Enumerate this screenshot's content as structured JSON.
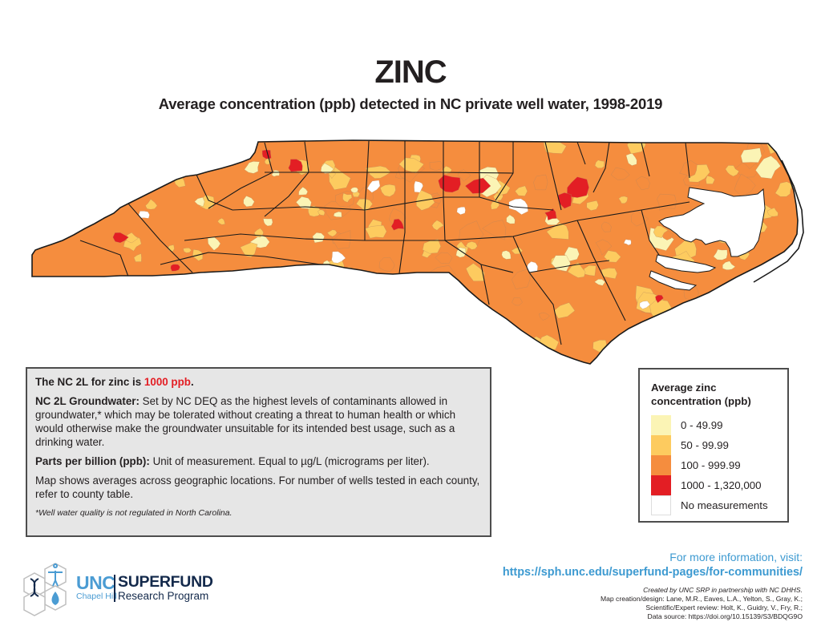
{
  "header": {
    "title": "ZINC",
    "subtitle": "Average concentration (ppb) detected in NC private well water, 1998-2019"
  },
  "map": {
    "region": "North Carolina",
    "metric": "Average zinc concentration (ppb) by geographic area",
    "category_colors": {
      "low": "#fbf4b5",
      "mid_low": "#fdcb5f",
      "mid_high": "#f58d3e",
      "high": "#e31e24",
      "none": "#ffffff"
    },
    "border_color": "#1a1a1a"
  },
  "info_box": {
    "standard_prefix": "The NC 2L for zinc is ",
    "standard_value": "1000 ppb",
    "standard_suffix": ".",
    "groundwater_label": "NC 2L Groundwater:",
    "groundwater_text": " Set by NC DEQ as the highest levels of contaminants allowed in groundwater,* which may be tolerated without creating a threat to human health or which would otherwise make the groundwater unsuitable for its intended best usage, such as a drinking water.",
    "ppb_label": "Parts per billion (ppb):",
    "ppb_text": " Unit of measurement. Equal to µg/L (micrograms per liter).",
    "averages_text": "Map shows averages across geographic locations. For number of wells tested in each county, refer to county table.",
    "footnote": "*Well water quality is not regulated in North Carolina.",
    "highlight_color": "#e31e24"
  },
  "legend": {
    "title": "Average zinc concentration (ppb)",
    "items": [
      {
        "label": "0 - 49.99",
        "color": "#fbf4b5"
      },
      {
        "label": "50 - 99.99",
        "color": "#fdcb5f"
      },
      {
        "label": "100 - 999.99",
        "color": "#f58d3e"
      },
      {
        "label": "1000 - 1,320,000",
        "color": "#e31e24"
      },
      {
        "label": "No measurements",
        "color": "#ffffff"
      }
    ]
  },
  "more_info": {
    "line1": "For more information, visit:",
    "url": "https://sph.unc.edu/superfund-pages/for-communities/",
    "color": "#3d9ad1"
  },
  "credits": {
    "created_by": "Created by UNC SRP in partnership with NC DHHS.",
    "design": "Map creation/design: Lane, M.R., Eaves, L.A., Yelton, S., Gray, K.;",
    "review": "Scientific/Expert review: Holt, K., Guidry, V., Fry, R.;",
    "source": "Data source: https://doi.org/10.15139/S3/BDQG9O"
  },
  "logo": {
    "unc": "UNC",
    "chapel_hill": "Chapel Hill",
    "superfund": "SUPERFUND",
    "research_program": "Research Program"
  }
}
